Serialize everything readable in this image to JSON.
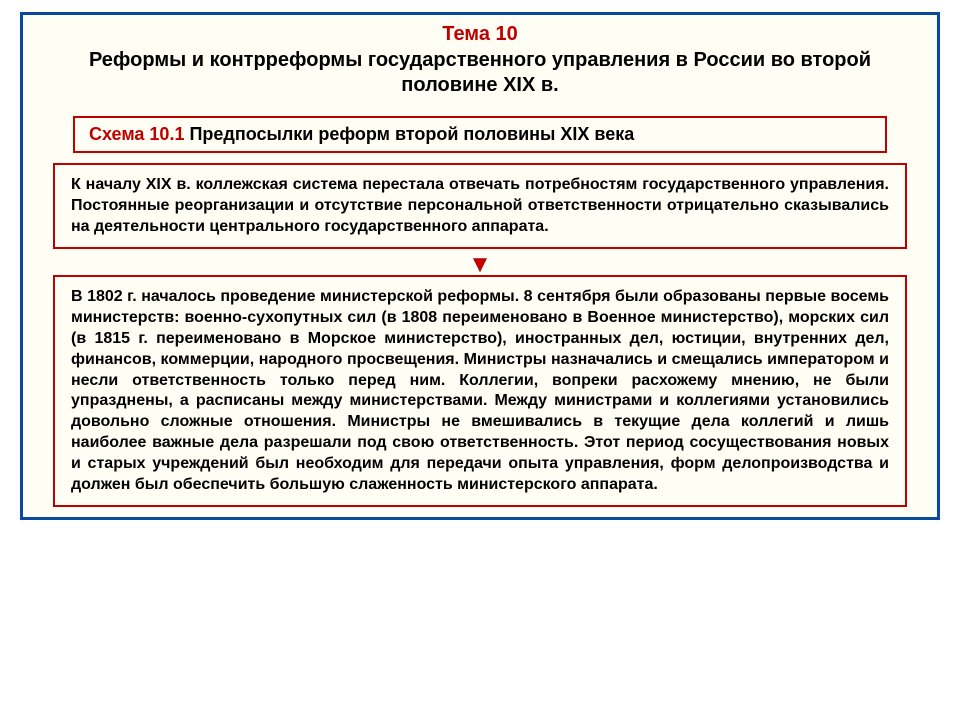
{
  "header": {
    "topic_label": "Тема 10",
    "title": "Реформы и контрреформы государственного управления в России во второй половине XIX в."
  },
  "schema": {
    "label": "Схема 10.1",
    "title": "Предпосылки реформ второй половины XIX века"
  },
  "block1": "К началу XIX в. коллежская система перестала отвечать потребностям государственного управления. Постоянные реорганизации и отсутствие персональной ответственности отрицательно сказывались на деятельности центрального государственного аппарата.",
  "block2": "В 1802 г. началось проведение министерской реформы. 8 сентября были образованы первые восемь министерств: военно-сухопутных сил (в 1808 переименовано в Военное министерство), морских сил (в 1815 г. переименовано в Морское министерство), иностранных дел, юстиции, внутренних дел, финансов, коммерции, народного просвещения. Министры назначались и смещались императором и несли ответственность только перед ним. Коллегии, вопреки расхожему мнению, не были упразднены, а расписаны между министерствами. Между министрами и коллегиями установились довольно сложные отношения. Министры не вмешивались в текущие дела коллегий и лишь наиболее важные дела разрешали под свою ответственность. Этот период сосуществования новых и старых учреждений был необходим для передачи опыта управления, форм делопроизводства и должен был обеспечить большую слаженность министерского аппарата.",
  "style": {
    "frame_border_color": "#0a4a9e",
    "box_border_color": "#c00000",
    "accent_color": "#c00000",
    "background_color": "#fffef5",
    "page_background": "#ffffff",
    "text_color": "#000000",
    "title_fontsize": 20,
    "body_fontsize": 16,
    "schema_fontsize": 18,
    "font_family": "Arial"
  }
}
